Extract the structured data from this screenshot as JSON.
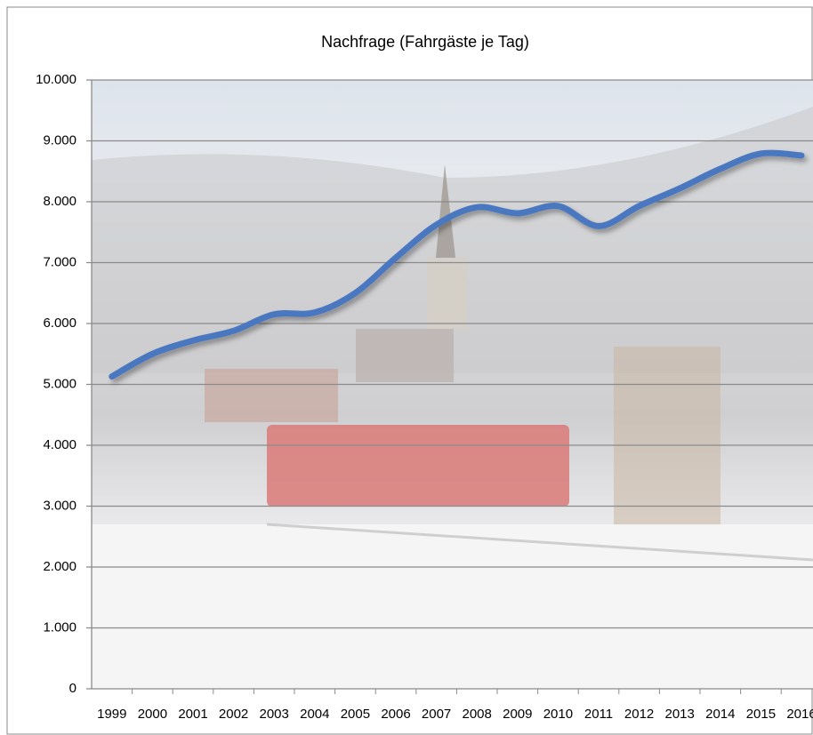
{
  "chart_data": {
    "type": "line",
    "title": "Nachfrage (Fahrgäste je Tag)",
    "categories": [
      "1999",
      "2000",
      "2001",
      "2002",
      "2003",
      "2004",
      "2005",
      "2006",
      "2007",
      "2008",
      "2009",
      "2010",
      "2011",
      "2012",
      "2013",
      "2014",
      "2015",
      "2016"
    ],
    "series": [
      {
        "name": "Nachfrage",
        "color": "#4a78c0",
        "values": [
          5130,
          5500,
          5720,
          5880,
          6150,
          6180,
          6500,
          7080,
          7620,
          7910,
          7810,
          7930,
          7600,
          7930,
          8220,
          8540,
          8790,
          8760
        ]
      }
    ],
    "ylim": [
      0,
      10000
    ],
    "yticks": [
      0,
      {
        "value": 1000,
        "label": "1.000"
      },
      {
        "value": 2000,
        "label": "2.000"
      },
      {
        "value": 3000,
        "label": "3.000"
      },
      {
        "value": 4000,
        "label": "4.000"
      },
      {
        "value": 5000,
        "label": "5.000"
      },
      {
        "value": 6000,
        "label": "6.000"
      },
      {
        "value": 7000,
        "label": "7.000"
      },
      {
        "value": 8000,
        "label": "8.000"
      },
      {
        "value": 9000,
        "label": "9.000"
      },
      {
        "value": 10000,
        "label": "10.000"
      }
    ],
    "grid": true
  }
}
